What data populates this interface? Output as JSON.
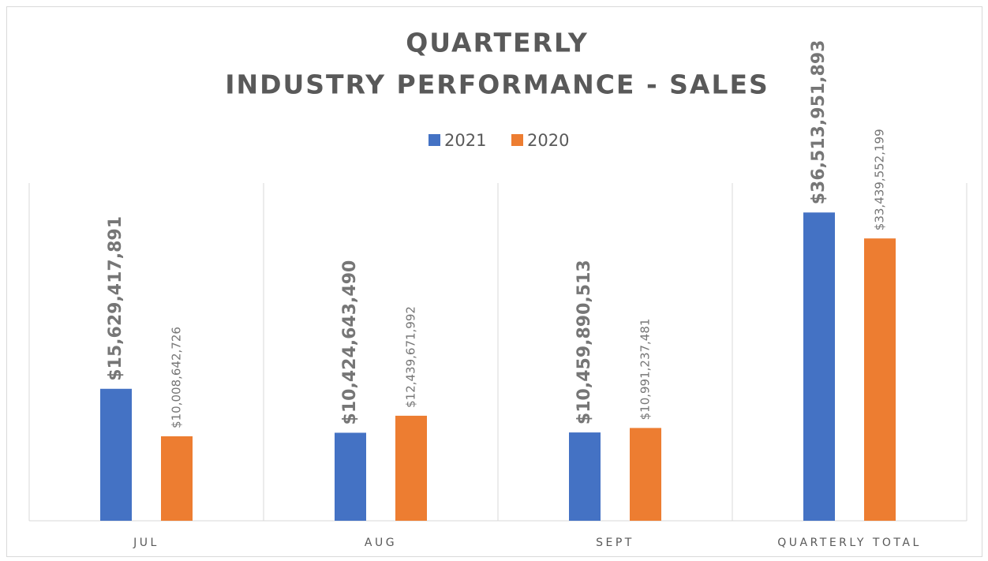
{
  "chart_data": {
    "type": "bar",
    "title": [
      "QUARTERLY",
      "INDUSTRY PERFORMANCE - SALES"
    ],
    "categories": [
      "JUL",
      "AUG",
      "SEPT",
      "QUARTERLY TOTAL"
    ],
    "series": [
      {
        "name": "2021",
        "color": "#4472c4",
        "values": [
          15629417891,
          10424643490,
          10459890513,
          36513951893
        ],
        "value_labels": [
          "$15,629,417,891",
          "$10,424,643,490",
          "$10,459,890,513",
          "$36,513,951,893"
        ]
      },
      {
        "name": "2020",
        "color": "#ed7d31",
        "values": [
          10008642726,
          12439671992,
          10991237481,
          33439552199
        ],
        "value_labels": [
          "$10,008,642,726",
          "$12,439,671,992",
          "$10,991,237,481",
          "$33,439,552,199"
        ]
      }
    ],
    "ylim": [
      0,
      40000000000
    ],
    "legend": "top"
  }
}
